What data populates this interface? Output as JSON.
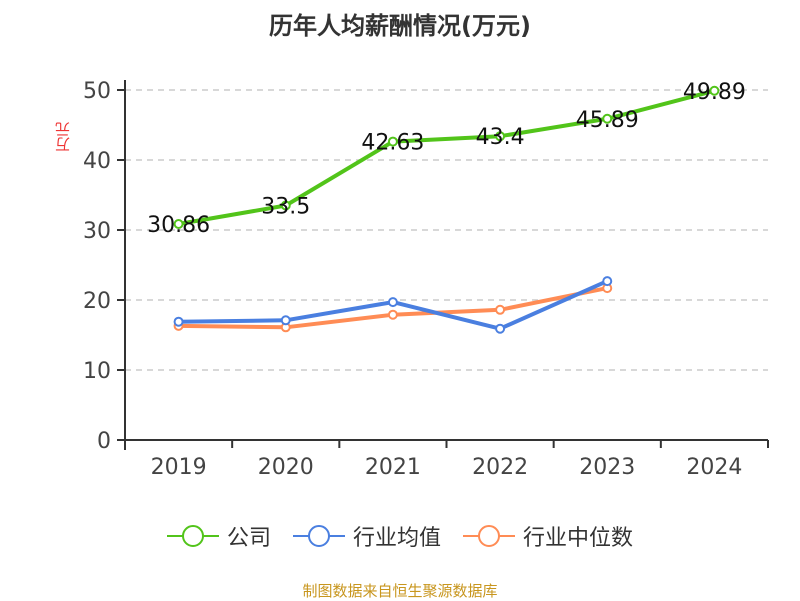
{
  "chart_data": {
    "type": "line",
    "title": "历年人均薪酬情况(万元)",
    "ylabel": "万元",
    "categories": [
      "2019",
      "2020",
      "2021",
      "2022",
      "2023",
      "2024"
    ],
    "ylim": [
      0,
      50
    ],
    "yticks": [
      0,
      10,
      20,
      30,
      40,
      50
    ],
    "grid": true,
    "legend_position": "bottom",
    "series": [
      {
        "name": "公司",
        "color": "#52c41a",
        "values": [
          30.86,
          33.5,
          42.63,
          43.4,
          45.89,
          49.89
        ],
        "labels": [
          "30.86",
          "33.5",
          "42.63",
          "43.4",
          "45.89",
          "49.89"
        ]
      },
      {
        "name": "行业均值",
        "color": "#4a7fe0",
        "values": [
          16.9,
          17.1,
          19.7,
          15.9,
          22.7,
          null
        ]
      },
      {
        "name": "行业中位数",
        "color": "#ff8c55",
        "values": [
          16.3,
          16.1,
          17.9,
          18.6,
          21.7,
          null
        ]
      }
    ]
  },
  "source": "制图数据来自恒生聚源数据库"
}
